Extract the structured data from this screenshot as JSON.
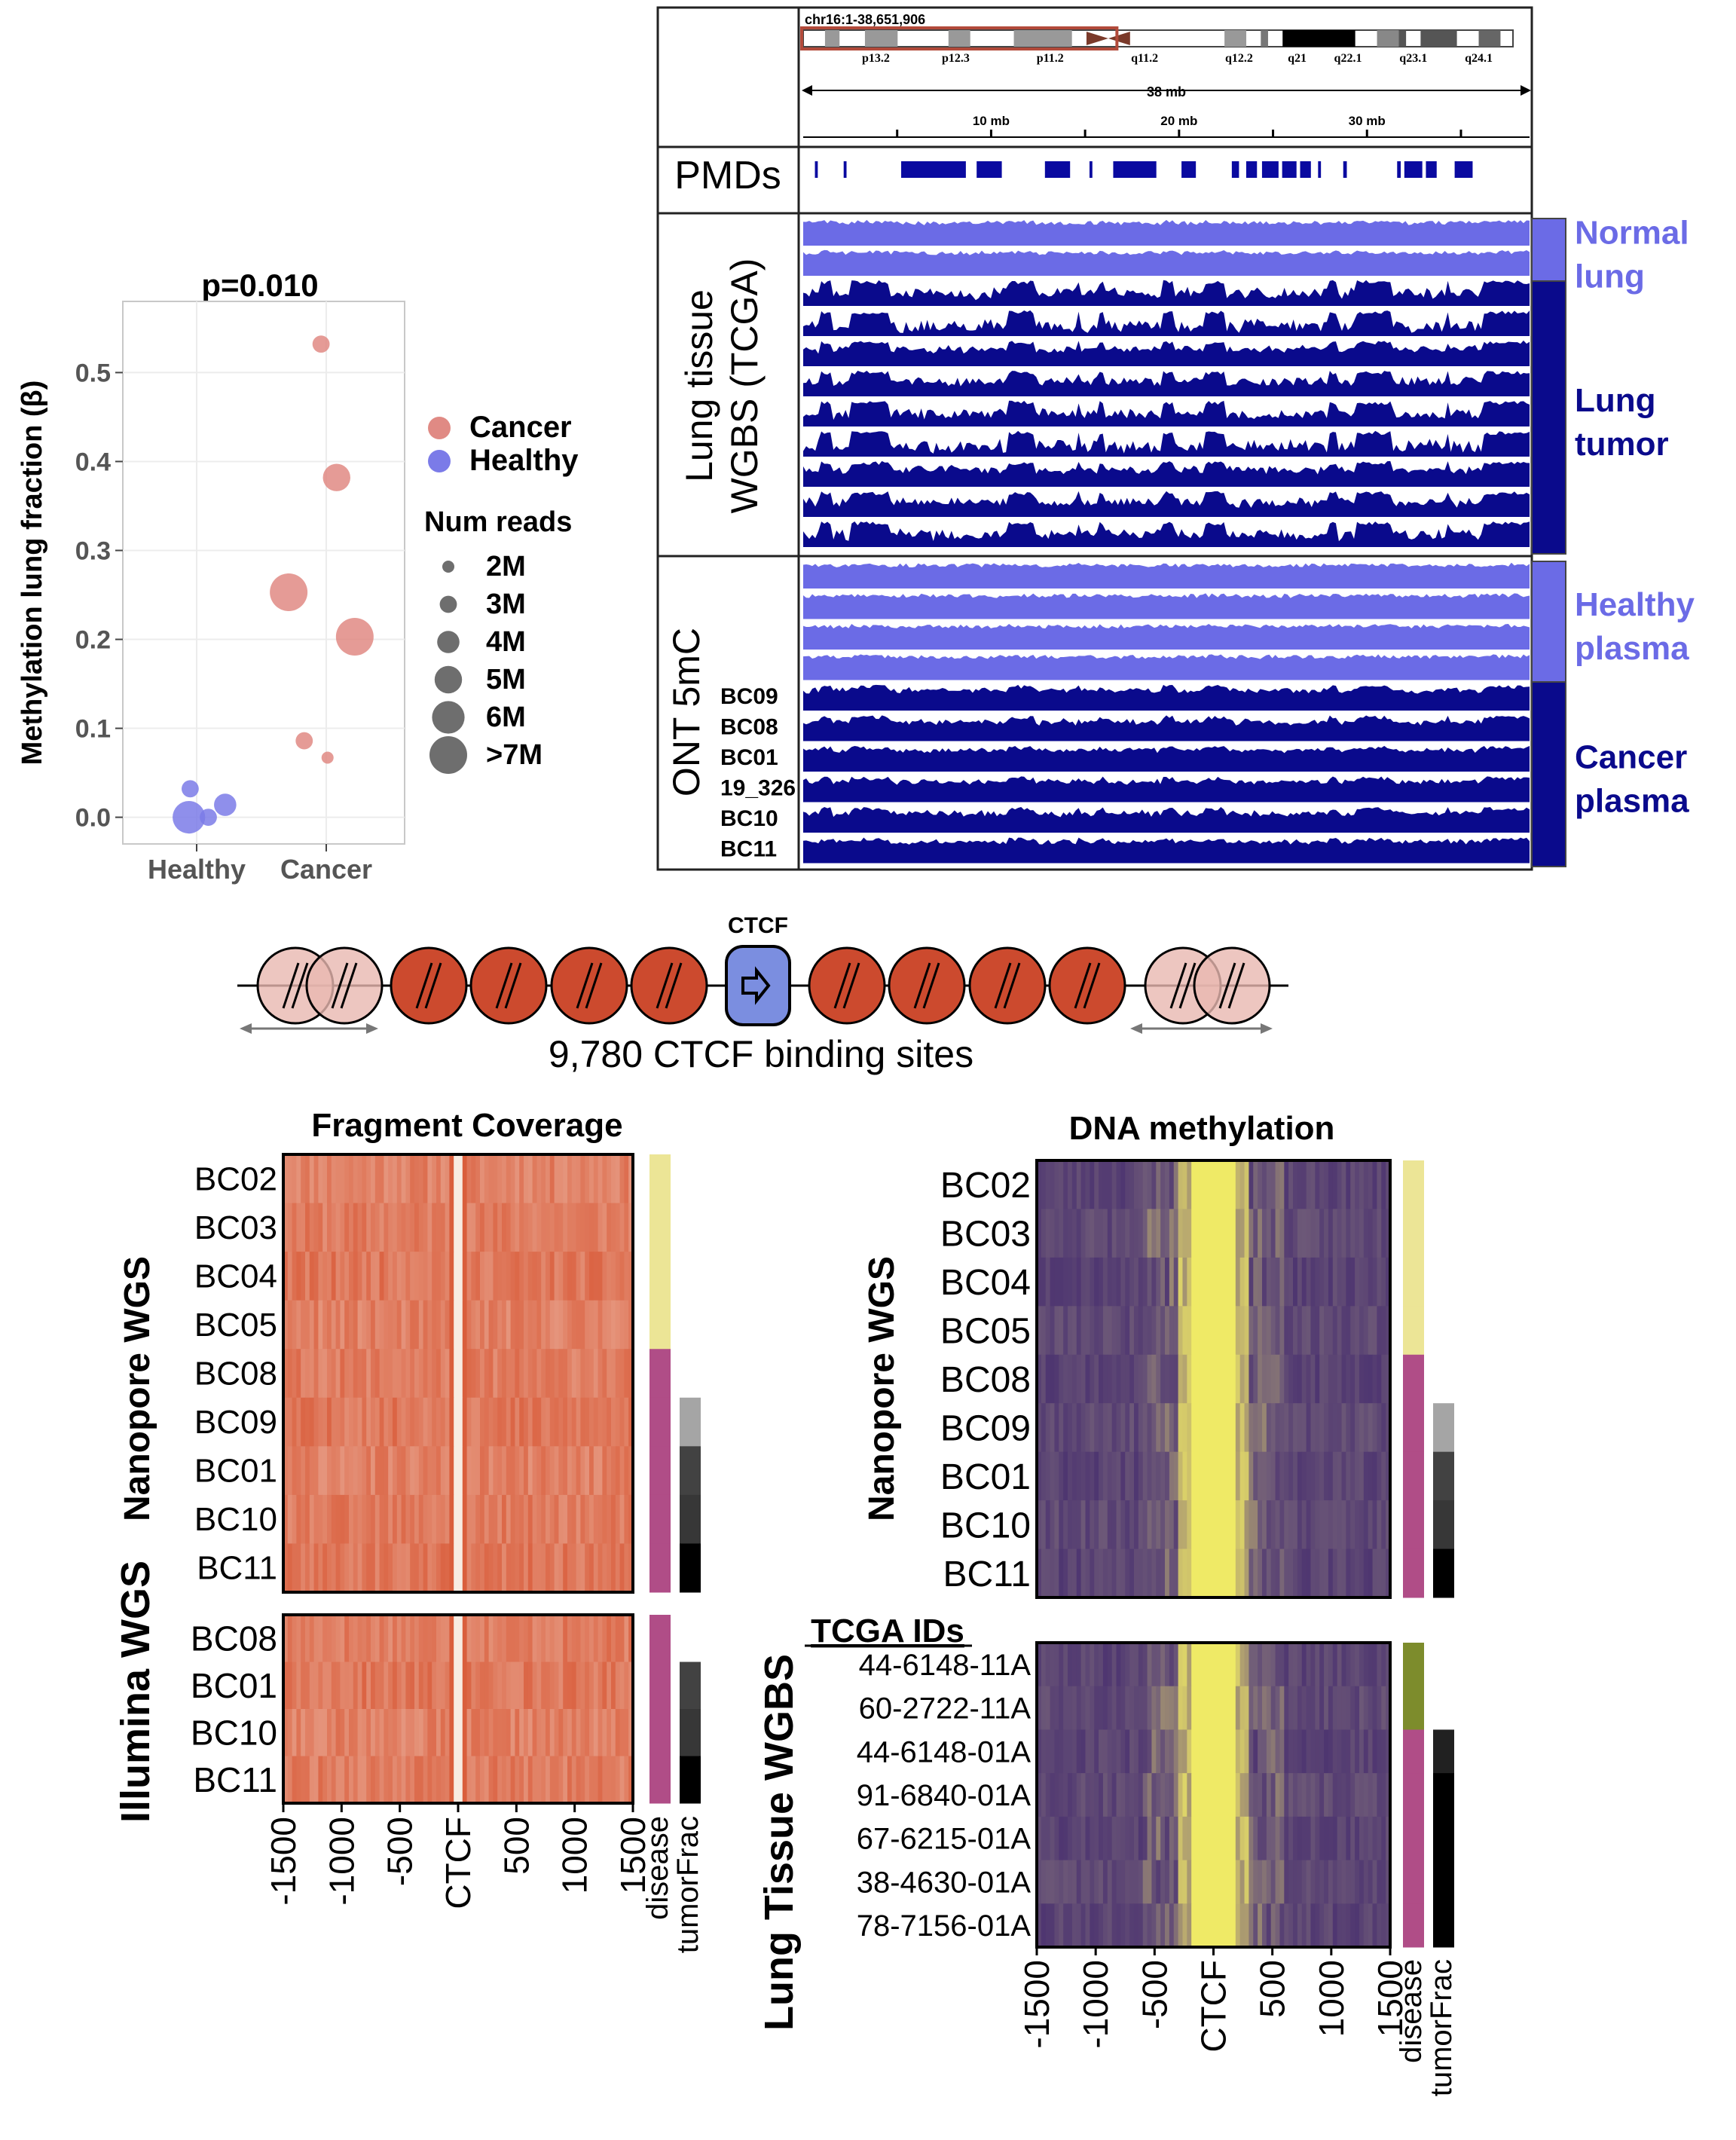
{
  "panelA": {
    "chart_data": {
      "type": "scatter",
      "title": "p=0.010",
      "xlabel": "",
      "ylabel": "Methylation lung fraction (β)",
      "categories": [
        "Healthy",
        "Cancer"
      ],
      "ylim": [
        -0.03,
        0.58
      ],
      "yticks": [
        "0.0",
        "0.1",
        "0.2",
        "0.3",
        "0.4",
        "0.5"
      ],
      "ytick_values": [
        0.0,
        0.1,
        0.2,
        0.3,
        0.4,
        0.5
      ],
      "series": [
        {
          "name": "Healthy",
          "color": "#7b7be8",
          "points": [
            {
              "x": "Healthy",
              "jitter": -0.05,
              "y": 0.032,
              "reads": 3
            },
            {
              "x": "Healthy",
              "jitter": -0.06,
              "y": 0.0,
              "reads": 6
            },
            {
              "x": "Healthy",
              "jitter": 0.09,
              "y": 0.0,
              "reads": 3
            },
            {
              "x": "Healthy",
              "jitter": 0.22,
              "y": 0.014,
              "reads": 4
            }
          ]
        },
        {
          "name": "Cancer",
          "color": "#e08a84",
          "points": [
            {
              "x": "Cancer",
              "jitter": -0.04,
              "y": 0.532,
              "reads": 3
            },
            {
              "x": "Cancer",
              "jitter": 0.08,
              "y": 0.382,
              "reads": 5
            },
            {
              "x": "Cancer",
              "jitter": -0.29,
              "y": 0.253,
              "reads": 7
            },
            {
              "x": "Cancer",
              "jitter": 0.22,
              "y": 0.203,
              "reads": 7
            },
            {
              "x": "Cancer",
              "jitter": -0.17,
              "y": 0.086,
              "reads": 3
            },
            {
              "x": "Cancer",
              "jitter": 0.01,
              "y": 0.067,
              "reads": 2
            }
          ]
        }
      ],
      "legend": {
        "groups": [
          "Cancer",
          "Healthy"
        ],
        "size_title": "Num reads",
        "size_labels": [
          "2M",
          "3M",
          "4M",
          "5M",
          "6M",
          ">7M"
        ],
        "size_values": [
          2,
          3,
          4,
          5,
          6,
          7
        ]
      }
    }
  },
  "panelB": {
    "ideogram_label": "chr16:1-38,651,906",
    "bands": [
      "p13.2",
      "p12.3",
      "p11.2",
      "q11.2",
      "q12.2",
      "q21",
      "q22.1",
      "q23.1",
      "q24.1"
    ],
    "scale_label": "38 mb",
    "ruler_ticks": [
      "10 mb",
      "20 mb",
      "30 mb"
    ],
    "ruler_tick_values_mb": [
      10,
      20,
      30
    ],
    "pmd_label": "PMDs",
    "tcga_label_line1": "Lung tissue",
    "tcga_label_line2": "WGBS (TCGA)",
    "ont_label": "ONT 5mC",
    "ont_samples": [
      "BC09",
      "BC08",
      "BC01",
      "19_326",
      "BC10",
      "BC11"
    ],
    "groups": [
      {
        "line1": "Normal",
        "line2": "lung",
        "color": "#6b6be6"
      },
      {
        "line1": "Lung",
        "line2": "tumor",
        "color": "#0a0a8c"
      },
      {
        "line1": "Healthy",
        "line2": "plasma",
        "color": "#6b6be6"
      },
      {
        "line1": "Cancer",
        "line2": "plasma",
        "color": "#0a0a8c"
      }
    ]
  },
  "panelC": {
    "ctcf_label": "CTCF",
    "caption": "9,780 CTCF binding sites"
  },
  "panelD": {
    "chart_data": [
      {
        "type": "heatmap",
        "title": "Fragment Coverage",
        "x_ticks": [
          "-1500",
          "-1000",
          "-500",
          "CTCF",
          "500",
          "1000",
          "1500"
        ],
        "x_values": [
          -1500,
          -1000,
          -500,
          0,
          500,
          1000,
          1500
        ],
        "groups": [
          {
            "label": "Nanopore WGS",
            "rows": [
              "BC02",
              "BC03",
              "BC04",
              "BC05",
              "BC08",
              "BC09",
              "BC01",
              "BC10",
              "BC11"
            ],
            "disease": [
              "healthy",
              "healthy",
              "healthy",
              "healthy",
              "cancer",
              "cancer",
              "cancer",
              "cancer",
              "cancer"
            ],
            "tumorFrac": [
              null,
              null,
              null,
              null,
              null,
              0.25,
              0.7,
              0.75,
              1.0
            ]
          },
          {
            "label": "Illumina WGS",
            "rows": [
              "BC08",
              "BC01",
              "BC10",
              "BC11"
            ],
            "disease": [
              "cancer",
              "cancer",
              "cancer",
              "cancer"
            ],
            "tumorFrac": [
              null,
              0.7,
              0.75,
              1.0
            ]
          }
        ],
        "annotations": [
          "disease",
          "tumorFrac"
        ]
      },
      {
        "type": "heatmap",
        "title": "DNA methylation",
        "x_ticks": [
          "-1500",
          "-1000",
          "-500",
          "CTCF",
          "500",
          "1000",
          "1500"
        ],
        "x_values": [
          -1500,
          -1000,
          -500,
          0,
          500,
          1000,
          1500
        ],
        "groups": [
          {
            "label": "Nanopore WGS",
            "rows": [
              "BC02",
              "BC03",
              "BC04",
              "BC05",
              "BC08",
              "BC09",
              "BC01",
              "BC10",
              "BC11"
            ],
            "disease": [
              "healthy",
              "healthy",
              "healthy",
              "healthy",
              "cancer",
              "cancer",
              "cancer",
              "cancer",
              "cancer"
            ],
            "tumorFrac": [
              null,
              null,
              null,
              null,
              null,
              0.25,
              0.7,
              0.75,
              1.0
            ]
          },
          {
            "label": "Lung Tissue WGBS",
            "header": "TCGA IDs",
            "rows": [
              "44-6148-11A",
              "60-2722-11A",
              "44-6148-01A",
              "91-6840-01A",
              "67-6215-01A",
              "38-4630-01A",
              "78-7156-01A"
            ],
            "disease": [
              "normal",
              "normal",
              "cancer",
              "cancer",
              "cancer",
              "cancer",
              "cancer"
            ],
            "tumorFrac": [
              null,
              null,
              0.85,
              1.0,
              1.0,
              1.0,
              1.0
            ]
          }
        ],
        "annotations": [
          "disease",
          "tumorFrac"
        ]
      }
    ],
    "colors": {
      "healthy": "#ece596",
      "cancer": "#b04d87",
      "normal": "#7d8c2c"
    }
  }
}
